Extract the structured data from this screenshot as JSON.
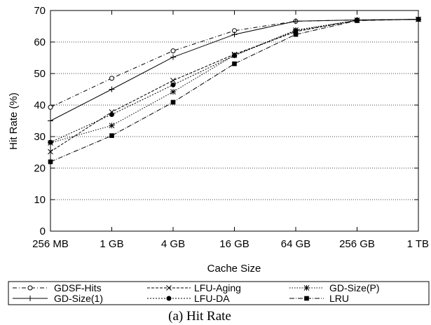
{
  "chart_data": {
    "type": "line",
    "caption": "(a) Hit Rate",
    "xlabel": "Cache Size",
    "ylabel": "Hit Rate (%)",
    "x": [
      "256 MB",
      "1 GB",
      "4 GB",
      "16 GB",
      "64 GB",
      "256 GB",
      "1 TB"
    ],
    "yticks": [
      0,
      10,
      20,
      30,
      40,
      50,
      60,
      70
    ],
    "ylim": [
      0,
      70
    ],
    "grid": "horizontal dotted",
    "legend_placement": "bottom",
    "series": [
      {
        "name": "GDSF-Hits",
        "marker": "open-circle",
        "dash": "6,3,1,3",
        "values": [
          39.3,
          48.5,
          57.2,
          63.6,
          66.6,
          67.0,
          67.2
        ]
      },
      {
        "name": "LFU-Aging",
        "marker": "x",
        "dash": "4,2",
        "values": [
          25.2,
          37.8,
          47.8,
          56.1,
          63.3,
          66.9,
          67.2
        ]
      },
      {
        "name": "GD-Size(P)",
        "marker": "asterisk",
        "dash": "1.5,2",
        "values": [
          28.0,
          33.5,
          44.2,
          55.8,
          63.8,
          66.9,
          67.2
        ]
      },
      {
        "name": "GD-Size(1)",
        "marker": "plus",
        "dash": "",
        "values": [
          35.0,
          45.0,
          55.2,
          62.4,
          66.6,
          67.0,
          67.2
        ]
      },
      {
        "name": "LFU-DA",
        "marker": "filled-circle",
        "dash": "2,2",
        "values": [
          28.2,
          37.0,
          46.4,
          55.7,
          63.6,
          66.9,
          67.2
        ]
      },
      {
        "name": "LRU",
        "marker": "filled-square",
        "dash": "7,2,1,2",
        "values": [
          22.0,
          30.3,
          40.9,
          53.1,
          62.4,
          66.8,
          67.2
        ]
      }
    ]
  }
}
